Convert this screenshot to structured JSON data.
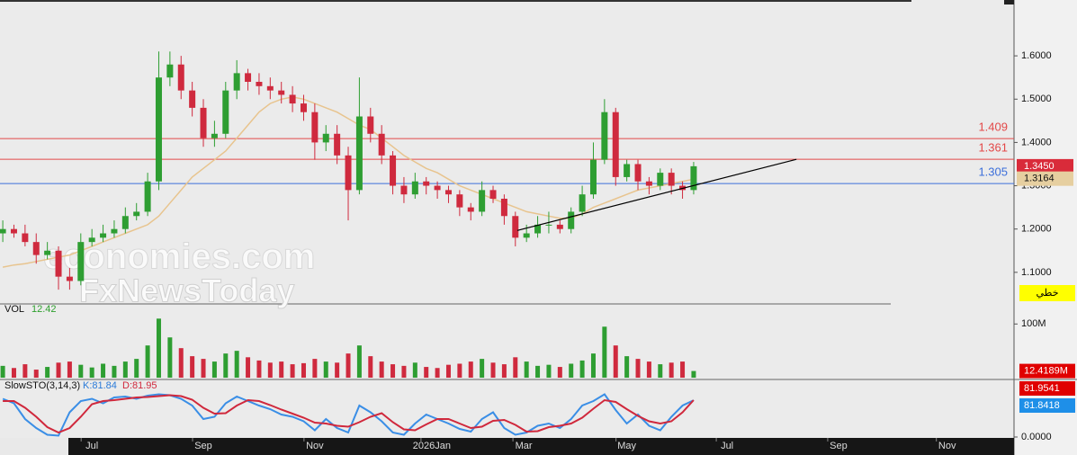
{
  "chart_data": [
    {
      "type": "candlestick",
      "x": [
        1,
        5,
        9,
        13,
        17,
        21,
        25,
        29,
        33,
        37,
        41,
        45,
        49,
        53,
        57,
        61,
        65,
        69,
        73,
        77,
        81,
        85,
        89,
        93,
        97,
        101,
        105,
        109,
        113,
        117,
        121,
        125,
        129,
        133,
        137,
        141,
        145,
        149,
        153,
        157,
        161,
        165,
        169,
        173,
        177,
        181,
        185,
        189,
        193,
        197,
        201,
        205,
        209,
        213,
        217,
        221,
        225,
        229,
        233,
        237,
        241,
        245,
        249
      ],
      "open": [
        1.19,
        1.2,
        1.19,
        1.17,
        1.14,
        1.15,
        1.09,
        1.08,
        1.17,
        1.18,
        1.19,
        1.2,
        1.23,
        1.24,
        1.31,
        1.55,
        1.58,
        1.52,
        1.48,
        1.41,
        1.42,
        1.52,
        1.56,
        1.54,
        1.53,
        1.52,
        1.51,
        1.49,
        1.47,
        1.4,
        1.42,
        1.37,
        1.29,
        1.46,
        1.42,
        1.37,
        1.3,
        1.28,
        1.31,
        1.3,
        1.29,
        1.28,
        1.25,
        1.24,
        1.29,
        1.27,
        1.23,
        1.18,
        1.19,
        1.21,
        1.21,
        1.2,
        1.24,
        1.28,
        1.36,
        1.47,
        1.32,
        1.35,
        1.31,
        1.3,
        1.33,
        1.3,
        1.29
      ],
      "high": [
        1.22,
        1.21,
        1.21,
        1.19,
        1.17,
        1.16,
        1.11,
        1.19,
        1.2,
        1.21,
        1.22,
        1.25,
        1.26,
        1.33,
        1.61,
        1.61,
        1.6,
        1.54,
        1.5,
        1.45,
        1.54,
        1.59,
        1.57,
        1.56,
        1.55,
        1.54,
        1.53,
        1.51,
        1.49,
        1.44,
        1.44,
        1.39,
        1.55,
        1.48,
        1.44,
        1.38,
        1.32,
        1.33,
        1.32,
        1.31,
        1.3,
        1.29,
        1.26,
        1.31,
        1.3,
        1.28,
        1.24,
        1.21,
        1.23,
        1.24,
        1.22,
        1.25,
        1.3,
        1.4,
        1.5,
        1.48,
        1.36,
        1.36,
        1.32,
        1.34,
        1.34,
        1.31,
        1.355
      ],
      "low": [
        1.17,
        1.18,
        1.16,
        1.12,
        1.13,
        1.06,
        1.06,
        1.07,
        1.16,
        1.17,
        1.18,
        1.19,
        1.22,
        1.23,
        1.29,
        1.53,
        1.5,
        1.46,
        1.39,
        1.39,
        1.41,
        1.5,
        1.52,
        1.51,
        1.5,
        1.49,
        1.47,
        1.45,
        1.36,
        1.38,
        1.35,
        1.22,
        1.28,
        1.4,
        1.35,
        1.28,
        1.26,
        1.27,
        1.28,
        1.27,
        1.26,
        1.23,
        1.22,
        1.23,
        1.26,
        1.21,
        1.16,
        1.17,
        1.18,
        1.19,
        1.19,
        1.19,
        1.23,
        1.27,
        1.35,
        1.3,
        1.31,
        1.29,
        1.28,
        1.29,
        1.28,
        1.27,
        1.28
      ],
      "close": [
        1.2,
        1.19,
        1.17,
        1.14,
        1.15,
        1.09,
        1.08,
        1.17,
        1.18,
        1.19,
        1.2,
        1.23,
        1.24,
        1.31,
        1.55,
        1.58,
        1.52,
        1.48,
        1.41,
        1.42,
        1.52,
        1.56,
        1.54,
        1.53,
        1.52,
        1.51,
        1.49,
        1.47,
        1.4,
        1.42,
        1.37,
        1.29,
        1.46,
        1.42,
        1.37,
        1.3,
        1.28,
        1.31,
        1.3,
        1.29,
        1.28,
        1.25,
        1.24,
        1.29,
        1.27,
        1.23,
        1.18,
        1.19,
        1.21,
        1.21,
        1.2,
        1.24,
        1.28,
        1.36,
        1.47,
        1.32,
        1.35,
        1.31,
        1.3,
        1.33,
        1.3,
        1.29,
        1.345
      ],
      "up_color": "#2e9e32",
      "down_color": "#cf2a3e",
      "ma": {
        "color": "#e8c48e",
        "values": [
          1.112,
          1.117,
          1.12,
          1.125,
          1.13,
          1.135,
          1.14,
          1.15,
          1.16,
          1.17,
          1.18,
          1.19,
          1.2,
          1.21,
          1.23,
          1.26,
          1.29,
          1.32,
          1.34,
          1.36,
          1.38,
          1.41,
          1.44,
          1.47,
          1.49,
          1.5,
          1.505,
          1.5,
          1.49,
          1.48,
          1.47,
          1.455,
          1.44,
          1.43,
          1.41,
          1.39,
          1.37,
          1.355,
          1.34,
          1.33,
          1.315,
          1.3,
          1.29,
          1.28,
          1.27,
          1.26,
          1.25,
          1.24,
          1.235,
          1.23,
          1.225,
          1.225,
          1.235,
          1.25,
          1.26,
          1.27,
          1.28,
          1.29,
          1.295,
          1.3,
          1.305,
          1.31,
          1.315
        ]
      },
      "lines": [
        {
          "value": 1.409,
          "label": "1.409",
          "color": "#e34848"
        },
        {
          "value": 1.361,
          "label": "1.361",
          "color": "#e34848"
        },
        {
          "value": 1.305,
          "label": "1.305",
          "color": "#3c6fda"
        }
      ],
      "trendline": {
        "x": [
          185.7,
          285.9
        ],
        "y": [
          1.1967,
          1.361
        ],
        "color": "#000000"
      },
      "last_price": {
        "value": 1.345,
        "label": "1.3450",
        "color": "#d92b3a"
      },
      "ma_last": {
        "value": 1.3164,
        "label": "1.3164",
        "color": "#e6cfa0"
      },
      "xlim": [
        0,
        364
      ],
      "xticks": [
        {
          "value": 33,
          "label": "Jul"
        },
        {
          "value": 73,
          "label": "Sep"
        },
        {
          "value": 113,
          "label": "Nov"
        },
        {
          "value": 155,
          "label": "2026Jan"
        },
        {
          "value": 188,
          "label": "Mar"
        },
        {
          "value": 225,
          "label": "May"
        },
        {
          "value": 261,
          "label": "Jul"
        },
        {
          "value": 301,
          "label": "Sep"
        },
        {
          "value": 340,
          "label": "Nov"
        }
      ],
      "ylim": [
        1.027,
        1.729
      ],
      "yticks": [
        {
          "value": 1.6,
          "label": "1.6000"
        },
        {
          "value": 1.5,
          "label": "1.5000"
        },
        {
          "value": 1.4,
          "label": "1.4000"
        },
        {
          "value": 1.3,
          "label": "1.3000"
        },
        {
          "value": 1.2,
          "label": "1.2000"
        },
        {
          "value": 1.1,
          "label": "1.1000"
        }
      ]
    },
    {
      "type": "bar",
      "title": "VOL",
      "last_value": 12.42,
      "values": [
        22,
        18,
        25,
        15,
        20,
        28,
        30,
        24,
        19,
        26,
        22,
        30,
        35,
        60,
        110,
        75,
        55,
        40,
        35,
        30,
        45,
        50,
        38,
        32,
        28,
        30,
        25,
        27,
        35,
        30,
        28,
        45,
        60,
        40,
        30,
        25,
        22,
        28,
        20,
        18,
        24,
        26,
        30,
        35,
        28,
        25,
        38,
        30,
        22,
        24,
        20,
        26,
        32,
        45,
        95,
        60,
        40,
        35,
        30,
        25,
        28,
        30,
        12.42
      ],
      "badge": {
        "value": 12.4189,
        "label": "12.4189M",
        "color": "#e00000"
      },
      "ylim": [
        0,
        134
      ],
      "yticks": [
        {
          "value": 100,
          "label": "100M"
        }
      ]
    },
    {
      "type": "line",
      "title": "SlowSTO(3,14,3)",
      "k_label": "K:81.84",
      "d_label": "D:81.95",
      "series": [
        {
          "name": "K",
          "color": "#3a8ee6",
          "values": [
            85,
            75,
            40,
            20,
            5,
            3,
            55,
            80,
            85,
            75,
            88,
            90,
            85,
            92,
            95,
            93,
            85,
            70,
            40,
            45,
            75,
            90,
            80,
            70,
            62,
            50,
            45,
            35,
            15,
            40,
            20,
            10,
            70,
            55,
            35,
            10,
            5,
            30,
            50,
            40,
            30,
            18,
            12,
            40,
            55,
            20,
            5,
            10,
            25,
            30,
            20,
            40,
            70,
            80,
            95,
            60,
            30,
            50,
            25,
            15,
            45,
            70,
            81.84
          ]
        },
        {
          "name": "D",
          "color": "#d0283c",
          "values": [
            80,
            80,
            65,
            45,
            22,
            10,
            20,
            45,
            73,
            80,
            82,
            85,
            88,
            89,
            91,
            93,
            91,
            83,
            65,
            52,
            53,
            70,
            82,
            80,
            71,
            61,
            52,
            43,
            32,
            30,
            25,
            23,
            33,
            45,
            53,
            33,
            17,
            15,
            28,
            40,
            40,
            30,
            20,
            23,
            36,
            38,
            27,
            12,
            13,
            22,
            25,
            30,
            43,
            63,
            82,
            78,
            62,
            47,
            35,
            30,
            35,
            55,
            81.95
          ]
        }
      ],
      "badges": [
        {
          "value": 81.9541,
          "color": "#e00000"
        },
        {
          "value": 81.8418,
          "color": "#1e8fe8"
        }
      ],
      "ylim": [
        0,
        126
      ],
      "yticks": [
        {
          "value": 0,
          "label": "0.0000"
        }
      ]
    }
  ],
  "watermark": [
    "economies.com",
    "FxNewsToday"
  ],
  "toolbar_button": "خطي"
}
